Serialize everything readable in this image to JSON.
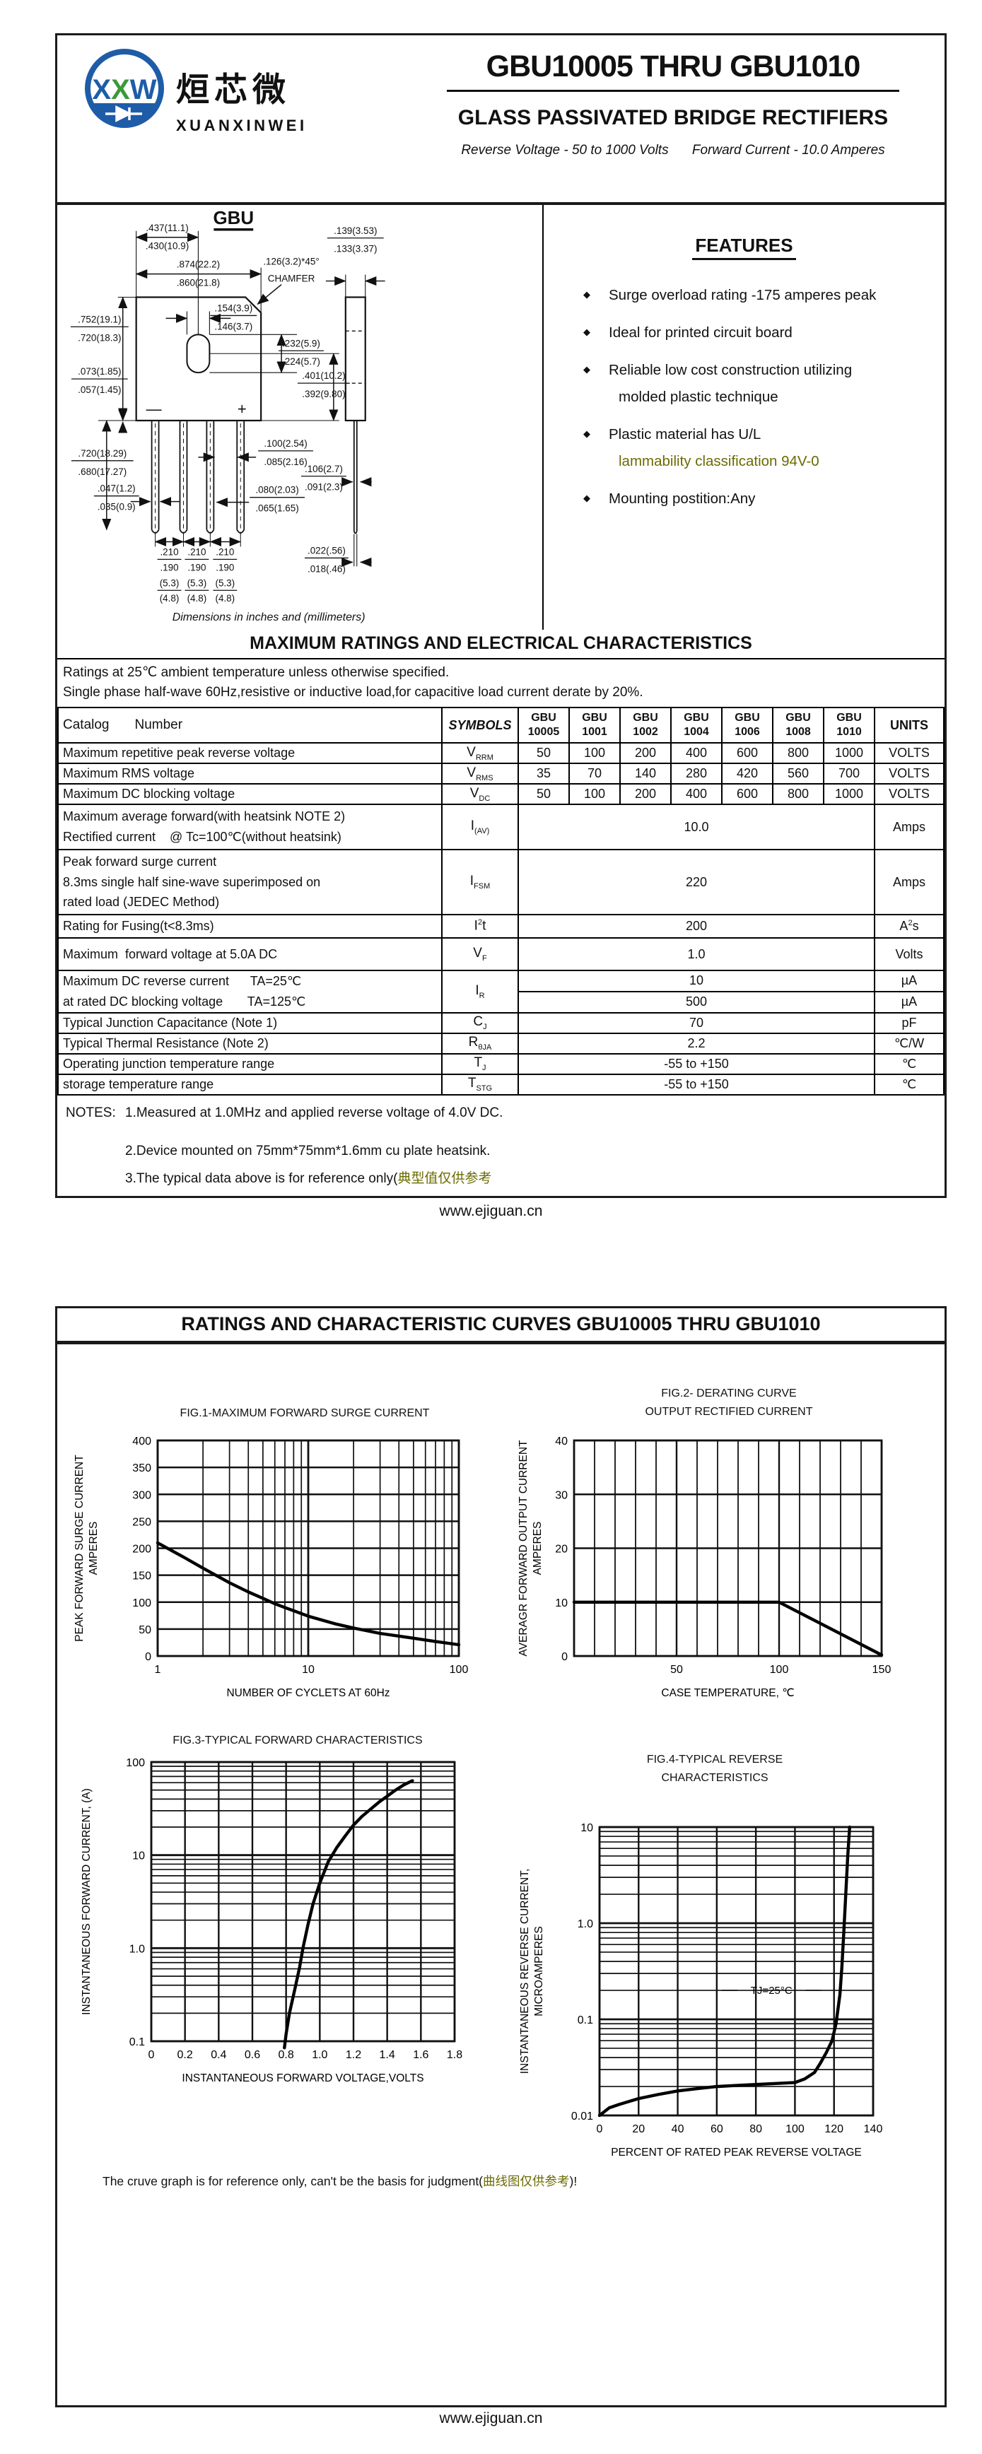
{
  "colors": {
    "accent_blue": "#1e5ca8",
    "accent_green": "#3a9a3a",
    "olive": "#6b6b00"
  },
  "header": {
    "brand_cn": "烜芯微",
    "brand_en": "XUANXINWEI",
    "part_range": "GBU10005 THRU GBU1010",
    "subtitle": "GLASS PASSIVATED  BRIDGE RECTIFIERS",
    "reverse_voltage": "Reverse Voltage - 50 to 1000 Volts",
    "forward_current": "Forward Current - 10.0 Amperes"
  },
  "package": {
    "name": "GBU",
    "caption": "Dimensions in inches and (millimeters)",
    "polarity_minus": "—",
    "polarity_plus": "+",
    "dims": {
      "hole_offset": [
        ".437(11.1)",
        ".430(10.9)"
      ],
      "body_width": [
        ".874(22.2)",
        ".860(21.8)"
      ],
      "chamfer": [
        ".126(3.2)*45°",
        "CHAMFER"
      ],
      "side_thickness": [
        ".139(3.53)",
        ".133(3.37)"
      ],
      "hole_width": [
        ".154(3.9)",
        ".146(3.7)"
      ],
      "body_height": [
        ".752(19.1)",
        ".720(18.3)"
      ],
      "hole_height": [
        ".232(5.9)",
        ".224(5.7)"
      ],
      "hole_center_bottom": [
        ".401(10.2)",
        ".392(9.80)"
      ],
      "ledge": [
        ".073(1.85)",
        ".057(1.45)"
      ],
      "lead_length": [
        ".720(18.29)",
        ".680(17.27)"
      ],
      "lead_width": [
        ".047(1.2)",
        ".035(0.9)"
      ],
      "lead_gap_top": [
        ".100(2.54)",
        ".085(2.16)"
      ],
      "lead_thick": [
        ".080(2.03)",
        ".065(1.65)"
      ],
      "side_lead": [
        ".106(2.7)",
        ".091(2.3)"
      ],
      "side_lead_tip": [
        ".022(.56)",
        ".018(.46)"
      ],
      "pitch": [
        ".210",
        ".190",
        "(5.3)",
        "(4.8)"
      ]
    }
  },
  "features": {
    "title": "FEATURES",
    "items": [
      {
        "line1": "Surge overload rating -175 amperes peak"
      },
      {
        "line1": "Ideal for printed circuit board"
      },
      {
        "line1": "Reliable low cost construction utilizing",
        "line2": "molded plastic technique"
      },
      {
        "line1": "Plastic material has U/L",
        "line2": "lammability classification 94V-0"
      },
      {
        "line1": "Mounting postition:Any"
      }
    ]
  },
  "ratings": {
    "title": "MAXIMUM RATINGS AND ELECTRICAL CHARACTERISTICS",
    "condition1": "Ratings at 25℃ ambient temperature unless otherwise specified.",
    "condition2": "Single phase half-wave 60Hz,resistive or inductive load,for capacitive load current derate by 20%.",
    "table": {
      "header": {
        "catalog": "Catalog",
        "number": "Number",
        "symbols": "SYMBOLS",
        "units": "UNITS",
        "devices": [
          [
            "GBU",
            "10005"
          ],
          [
            "GBU",
            "1001"
          ],
          [
            "GBU",
            "1002"
          ],
          [
            "GBU",
            "1004"
          ],
          [
            "GBU",
            "1006"
          ],
          [
            "GBU",
            "1008"
          ],
          [
            "GBU",
            "1010"
          ]
        ]
      },
      "rows": [
        {
          "param_lines": [
            "Maximum repetitive peak reverse voltage"
          ],
          "symbol": {
            "pre": "V",
            "sub": "RRM"
          },
          "values": [
            "50",
            "100",
            "200",
            "400",
            "600",
            "800",
            "1000"
          ],
          "unit": "VOLTS"
        },
        {
          "param_lines": [
            "Maximum RMS voltage"
          ],
          "symbol": {
            "pre": "V",
            "sub": "RMS"
          },
          "values": [
            "35",
            "70",
            "140",
            "280",
            "420",
            "560",
            "700"
          ],
          "unit": "VOLTS"
        },
        {
          "param_lines": [
            "Maximum DC blocking voltage"
          ],
          "symbol": {
            "pre": "V",
            "sub": "DC"
          },
          "values": [
            "50",
            "100",
            "200",
            "400",
            "600",
            "800",
            "1000"
          ],
          "unit": "VOLTS"
        },
        {
          "param_lines": [
            "Maximum average forward(with heatsink NOTE 2)",
            "Rectified current    @ Tc=100℃(without heatsink)"
          ],
          "symbol": {
            "pre": "I",
            "sub": "(AV)"
          },
          "span": "10.0",
          "unit": "Amps"
        },
        {
          "param_lines": [
            "Peak forward surge current",
            "8.3ms single half sine-wave superimposed on",
            "rated load (JEDEC Method)"
          ],
          "symbol": {
            "pre": "I",
            "sub": "FSM"
          },
          "span": "220",
          "unit": "Amps"
        },
        {
          "param_lines": [
            "Rating for Fusing(t<8.3ms)"
          ],
          "symbol": {
            "pre": "I",
            "sup": "2",
            "post": "t"
          },
          "span": "200",
          "unit": {
            "pre": "A",
            "sup": "2",
            "post": "s"
          }
        },
        {
          "param_lines": [
            "Maximum  forward voltage at 5.0A DC"
          ],
          "symbol": {
            "pre": "V",
            "sub": "F"
          },
          "span": "1.0",
          "unit": "Volts"
        },
        {
          "param_lines": [
            "Maximum DC reverse current      TA=25℃",
            "at rated DC blocking voltage       TA=125℃"
          ],
          "symbol": {
            "pre": "I",
            "sub": "R"
          },
          "split": [
            "10",
            "500"
          ],
          "split_units": [
            "µA",
            "µA"
          ]
        },
        {
          "param_lines": [
            "Typical Junction Capacitance (Note 1)"
          ],
          "symbol": {
            "pre": "C",
            "sub": "J"
          },
          "span": "70",
          "unit": "pF"
        },
        {
          "param_lines": [
            "Typical Thermal Resistance (Note 2)"
          ],
          "symbol": {
            "pre": "R",
            "sub": "θJA"
          },
          "span": "2.2",
          "unit": "℃/W"
        },
        {
          "param_lines": [
            "Operating junction temperature range"
          ],
          "symbol": {
            "pre": "T",
            "sub": "J"
          },
          "span": "-55 to +150",
          "unit": "℃"
        },
        {
          "param_lines": [
            "storage temperature range"
          ],
          "symbol": {
            "pre": "T",
            "sub": "STG"
          },
          "span": "-55 to +150",
          "unit": "℃"
        }
      ]
    }
  },
  "notes": {
    "label": "NOTES:",
    "lines": [
      "1.Measured at 1.0MHz and applied reverse voltage of 4.0V DC.",
      "2.Device mounted on 75mm*75mm*1.6mm cu plate heatsink."
    ],
    "line3_prefix": "3.The typical data above is for reference only(",
    "line3_cn": "典型值仅供参考"
  },
  "page2": {
    "title": "RATINGS AND CHARACTERISTIC CURVES GBU10005 THRU GBU1010",
    "note_prefix": "The cruve graph is for reference only, can't be the basis for judgment(",
    "note_cn": "曲线图仅供参考",
    "note_suffix": ")!"
  },
  "footer": {
    "url": "www.ejiguan.cn"
  },
  "chart_data": [
    {
      "type": "line",
      "title_lines": [
        "FIG.1-MAXIMUM FORWARD SURGE CURRENT"
      ],
      "xlabel": "NUMBER OF CYCLETS AT 60Hz",
      "ylabel_lines": [
        "PEAK FORWARD SURGE CURRENT",
        "AMPERES"
      ],
      "xscale": "log",
      "xlim": [
        1,
        100
      ],
      "xticks": [
        1,
        10,
        100
      ],
      "xticklabels": [
        "1",
        "10",
        "100"
      ],
      "yscale": "linear",
      "ylim": [
        0,
        400
      ],
      "ygrid": 50,
      "yticks": [
        0,
        50,
        100,
        150,
        200,
        250,
        300,
        350,
        400
      ],
      "yticklabels": [
        "0",
        "50",
        "100",
        "150",
        "200",
        "250",
        "300",
        "350",
        "400"
      ],
      "points": [
        [
          1,
          210
        ],
        [
          1.5,
          183
        ],
        [
          2,
          163
        ],
        [
          3,
          136
        ],
        [
          4,
          119
        ],
        [
          5,
          107
        ],
        [
          6,
          97
        ],
        [
          7,
          90
        ],
        [
          8,
          84
        ],
        [
          10,
          74
        ],
        [
          15,
          60
        ],
        [
          20,
          52
        ],
        [
          30,
          42
        ],
        [
          40,
          37
        ],
        [
          50,
          33
        ],
        [
          70,
          27
        ],
        [
          100,
          21
        ]
      ]
    },
    {
      "type": "line",
      "title_lines": [
        "FIG.2- DERATING CURVE",
        "OUTPUT RECTIFIED CURRENT"
      ],
      "xlabel": "CASE TEMPERATURE, ℃",
      "ylabel_lines": [
        "AVERAGR  FORWARD  OUTPUT CURRENT",
        "AMPERES"
      ],
      "xscale": "linear",
      "xlim": [
        0,
        150
      ],
      "xgrid": 10,
      "xticks": [
        50,
        100,
        150
      ],
      "xticklabels": [
        "50",
        "100",
        "150"
      ],
      "yscale": "linear",
      "ylim": [
        0,
        40
      ],
      "ygrid": 10,
      "yticks": [
        0,
        10,
        20,
        30,
        40
      ],
      "yticklabels": [
        "0",
        "10",
        "20",
        "30",
        "40"
      ],
      "points": [
        [
          0,
          10
        ],
        [
          100,
          10
        ],
        [
          150,
          0.2
        ]
      ]
    },
    {
      "type": "line",
      "title_lines": [
        "FIG.3-TYPICAL FORWARD CHARACTERISTICS"
      ],
      "xlabel": "INSTANTANEOUS FORWARD VOLTAGE,VOLTS",
      "ylabel_lines": [
        "INSTANTANEOUS FORWARD CURRENT, (A)"
      ],
      "xscale": "linear",
      "xlim": [
        0,
        1.8
      ],
      "xgrid": 0.2,
      "xticks": [
        0,
        0.2,
        0.4,
        0.6,
        0.8,
        1.0,
        1.2,
        1.4,
        1.6,
        1.8
      ],
      "xticklabels": [
        "0",
        "0.2",
        "0.4",
        "0.6",
        "0.8",
        "1.0",
        "1.2",
        "1.4",
        "1.6",
        "1.8"
      ],
      "yscale": "log",
      "ylim": [
        0.1,
        100
      ],
      "yticks": [
        0.1,
        1.0,
        10,
        100
      ],
      "yticklabels": [
        "0.1",
        "1.0",
        "10",
        "100"
      ],
      "points": [
        [
          0.79,
          0.085
        ],
        [
          0.8,
          0.12
        ],
        [
          0.82,
          0.2
        ],
        [
          0.85,
          0.35
        ],
        [
          0.88,
          0.62
        ],
        [
          0.9,
          1.0
        ],
        [
          0.93,
          1.8
        ],
        [
          0.96,
          3.0
        ],
        [
          1.0,
          5.0
        ],
        [
          1.05,
          8.5
        ],
        [
          1.1,
          12
        ],
        [
          1.15,
          16
        ],
        [
          1.2,
          21
        ],
        [
          1.25,
          26
        ],
        [
          1.3,
          31
        ],
        [
          1.35,
          37
        ],
        [
          1.4,
          43
        ],
        [
          1.45,
          50
        ],
        [
          1.5,
          57
        ],
        [
          1.55,
          63
        ]
      ]
    },
    {
      "type": "line",
      "title_lines": [
        "FIG.4-TYPICAL REVERSE",
        "CHARACTERISTICS"
      ],
      "xlabel": "PERCENT OF RATED PEAK REVERSE VOLTAGE",
      "ylabel_lines": [
        "INSTANTANEOUS  REVERSE  CURRENT,",
        "MICROAMPERES"
      ],
      "xscale": "linear",
      "xlim": [
        0,
        140
      ],
      "xgrid": 20,
      "xticks": [
        0,
        20,
        40,
        60,
        80,
        100,
        120,
        140
      ],
      "xticklabels": [
        "0",
        "20",
        "40",
        "60",
        "80",
        "100",
        "120",
        "140"
      ],
      "yscale": "log",
      "ylim": [
        0.01,
        10
      ],
      "yticks": [
        0.01,
        0.1,
        1.0,
        10
      ],
      "yticklabels": [
        "0.01",
        "0.1",
        "1.0",
        "10"
      ],
      "annotation": {
        "text": "TJ=25°C",
        "x": 88,
        "y": 0.2
      },
      "points": [
        [
          0,
          0.01
        ],
        [
          5,
          0.012
        ],
        [
          10,
          0.013
        ],
        [
          20,
          0.015
        ],
        [
          30,
          0.0165
        ],
        [
          40,
          0.018
        ],
        [
          50,
          0.019
        ],
        [
          60,
          0.02
        ],
        [
          70,
          0.0205
        ],
        [
          80,
          0.021
        ],
        [
          90,
          0.0215
        ],
        [
          100,
          0.022
        ],
        [
          105,
          0.024
        ],
        [
          110,
          0.028
        ],
        [
          113,
          0.035
        ],
        [
          116,
          0.045
        ],
        [
          119,
          0.06
        ],
        [
          121,
          0.09
        ],
        [
          123,
          0.18
        ],
        [
          124,
          0.35
        ],
        [
          125,
          0.8
        ],
        [
          126,
          2
        ],
        [
          127,
          5
        ],
        [
          128,
          10
        ]
      ]
    }
  ]
}
